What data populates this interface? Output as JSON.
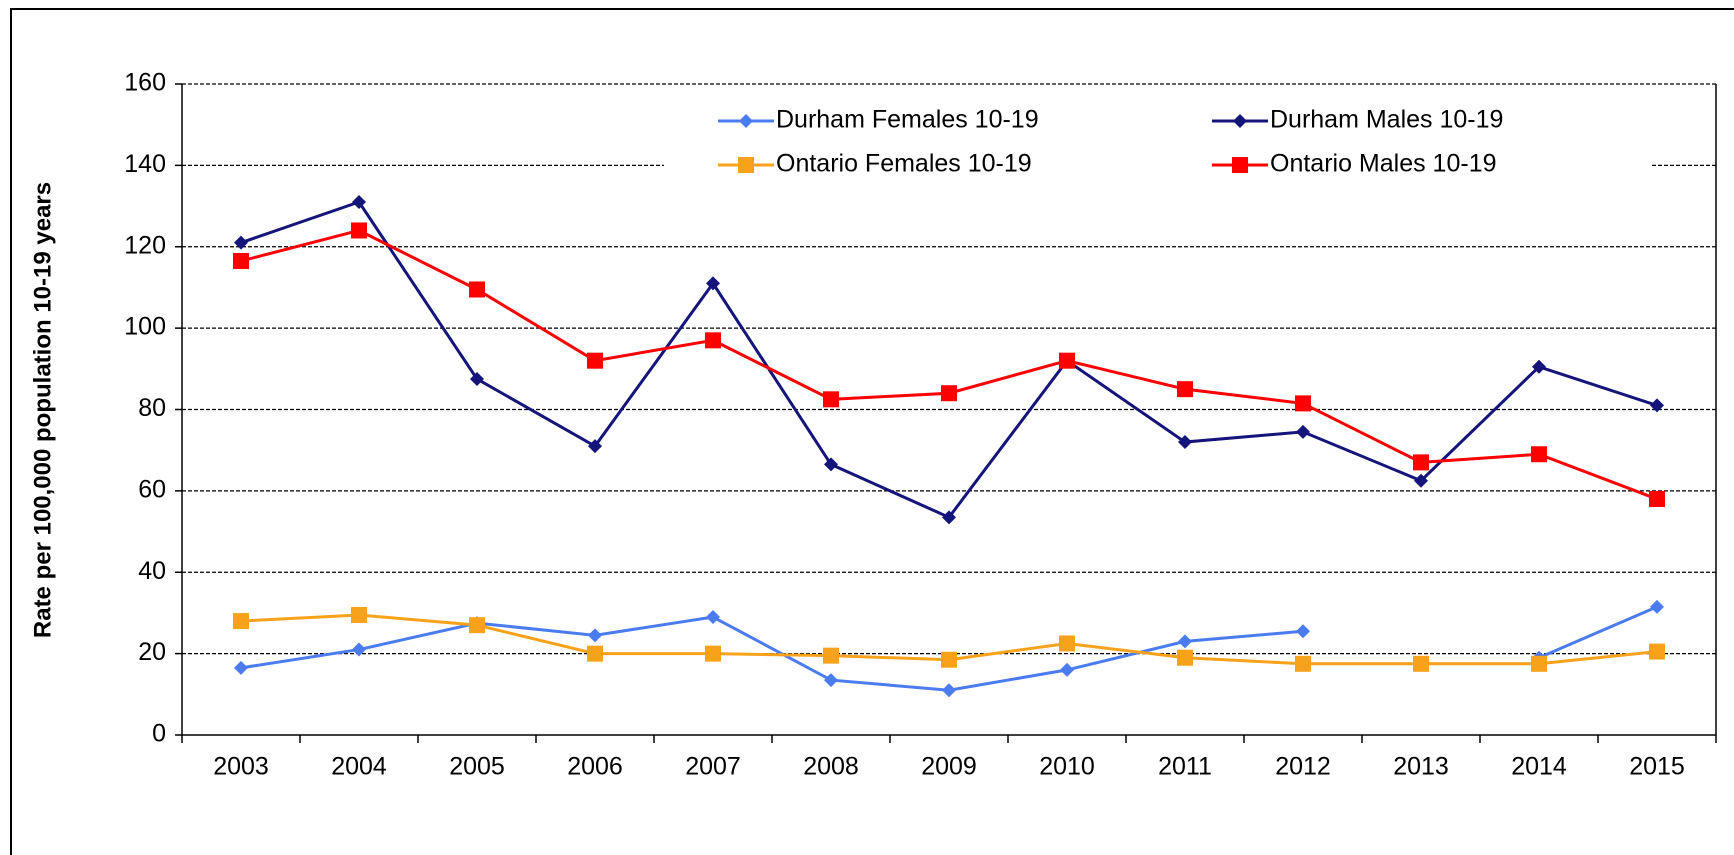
{
  "chart_data": {
    "type": "line",
    "y_label": "Rate per 100,000 population 10-19 years",
    "categories": [
      "2003",
      "2004",
      "2005",
      "2006",
      "2007",
      "2008",
      "2009",
      "2010",
      "2011",
      "2012",
      "2013",
      "2014",
      "2015"
    ],
    "series": [
      {
        "name": "Durham Females 10-19",
        "color": "#4a7cf0",
        "marker": "diamond",
        "values": [
          16.5,
          21,
          27.5,
          24.5,
          29,
          13.5,
          11,
          16,
          23,
          25.5,
          null,
          19,
          31.5
        ]
      },
      {
        "name": "Durham Males 10-19",
        "color": "#14147a",
        "marker": "diamond",
        "values": [
          121,
          131,
          87.5,
          71,
          111,
          66.5,
          53.5,
          92,
          72,
          74.5,
          62.5,
          90.5,
          81
        ]
      },
      {
        "name": "Ontario Females 10-19",
        "color": "#f8a21c",
        "marker": "square",
        "values": [
          28,
          29.5,
          27,
          20,
          20,
          19.5,
          18.5,
          22.5,
          19,
          17.5,
          17.5,
          17.5,
          20.5
        ]
      },
      {
        "name": "Ontario Males 10-19",
        "color": "#ff0000",
        "marker": "square",
        "values": [
          116.5,
          124,
          109.5,
          92,
          97,
          82.5,
          84,
          92,
          85,
          81.5,
          67,
          69,
          58
        ]
      }
    ],
    "ylim": [
      0,
      160
    ],
    "yticks": [
      0,
      20,
      40,
      60,
      80,
      100,
      120,
      140,
      160
    ],
    "grid": true
  }
}
